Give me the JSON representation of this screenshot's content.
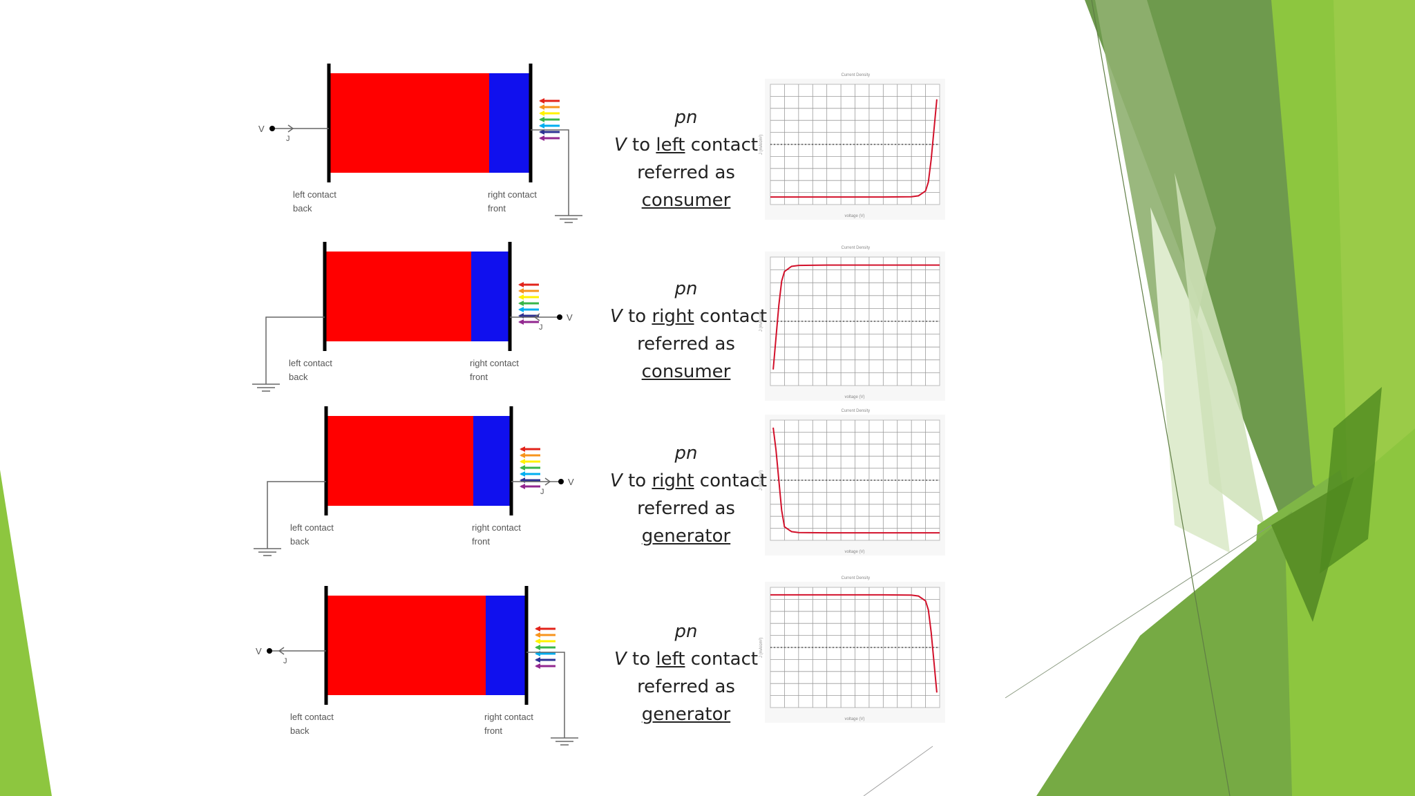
{
  "colors": {
    "p_region": "#ff0000",
    "n_region": "#1010ee",
    "contact": "#000000",
    "wire": "#666666",
    "curve": "#d2102a",
    "grid": "#9a9a9a",
    "accent_green": "#8dc63f",
    "accent_dark_green": "#5f9a2e"
  },
  "spectrum_colors": [
    "#e2231a",
    "#f7941d",
    "#fff200",
    "#39b54a",
    "#00aeef",
    "#2e3192",
    "#92278f"
  ],
  "panels": [
    {
      "id": "p1",
      "diagram": {
        "voltage_label": "V",
        "current_label": "J",
        "voltage_side": "left",
        "left_contact": "left contact",
        "left_sub": "back",
        "right_contact": "right contact",
        "right_sub": "front"
      },
      "caption": {
        "line1": "pn",
        "v_prefix": "V",
        "to_word": "to",
        "contact_side": "left",
        "contact_word": "contact",
        "line3": "referred as",
        "role": "consumer"
      },
      "chart_data": {
        "type": "line",
        "title": "Current Density",
        "xlabel": "voltage (V)",
        "ylabel": "J (mA/cm²)",
        "xlim": [
          -0.6,
          0.6
        ],
        "ylim": [
          -40,
          40
        ],
        "grid": true,
        "series": [
          {
            "x": [
              -0.6,
              -0.4,
              -0.2,
              0.0,
              0.2,
              0.4,
              0.45,
              0.5,
              0.52,
              0.54,
              0.56,
              0.58
            ],
            "y": [
              -35,
              -35,
              -35,
              -35,
              -35,
              -34.8,
              -34.2,
              -31,
              -25,
              -10,
              10,
              30
            ]
          }
        ]
      }
    },
    {
      "id": "p2",
      "diagram": {
        "voltage_label": "V",
        "current_label": "J",
        "voltage_side": "right",
        "left_contact": "left contact",
        "left_sub": "back",
        "right_contact": "right contact",
        "right_sub": "front"
      },
      "caption": {
        "line1": "pn",
        "v_prefix": "V",
        "to_word": "to",
        "contact_side": "right",
        "contact_word": "contact",
        "line3": "referred as",
        "role": "consumer"
      },
      "chart_data": {
        "type": "line",
        "title": "Current Density",
        "xlabel": "voltage (V)",
        "ylabel": "J (mA/cm²)",
        "xlim": [
          -0.6,
          0.6
        ],
        "ylim": [
          -40,
          40
        ],
        "grid": true,
        "series": [
          {
            "x": [
              -0.58,
              -0.56,
              -0.54,
              -0.52,
              -0.5,
              -0.45,
              -0.4,
              -0.2,
              0.0,
              0.2,
              0.4,
              0.6
            ],
            "y": [
              -30,
              -10,
              10,
              25,
              31,
              34.2,
              34.8,
              35,
              35,
              35,
              35,
              35
            ]
          }
        ]
      }
    },
    {
      "id": "p3",
      "diagram": {
        "voltage_label": "V",
        "current_label": "J",
        "voltage_side": "right",
        "left_contact": "left contact",
        "left_sub": "back",
        "right_contact": "right contact",
        "right_sub": "front"
      },
      "caption": {
        "line1": "pn",
        "v_prefix": "V",
        "to_word": "to",
        "contact_side": "right",
        "contact_word": "contact",
        "line3": "referred as",
        "role": "generator"
      },
      "chart_data": {
        "type": "line",
        "title": "Current Density",
        "xlabel": "voltage (V)",
        "ylabel": "J (mA/cm²)",
        "xlim": [
          -0.6,
          0.6
        ],
        "ylim": [
          -40,
          40
        ],
        "grid": true,
        "series": [
          {
            "x": [
              -0.58,
              -0.56,
              -0.54,
              -0.52,
              -0.5,
              -0.45,
              -0.4,
              -0.2,
              0.0,
              0.2,
              0.4,
              0.6
            ],
            "y": [
              35,
              20,
              0,
              -20,
              -31,
              -34.2,
              -34.8,
              -35,
              -35,
              -35,
              -35,
              -35
            ]
          }
        ]
      }
    },
    {
      "id": "p4",
      "diagram": {
        "voltage_label": "V",
        "current_label": "J",
        "voltage_side": "left",
        "left_contact": "left contact",
        "left_sub": "back",
        "right_contact": "right contact",
        "right_sub": "front"
      },
      "caption": {
        "line1": "pn",
        "v_prefix": "V",
        "to_word": "to",
        "contact_side": "left",
        "contact_word": "contact",
        "line3": "referred as",
        "role": "generator"
      },
      "chart_data": {
        "type": "line",
        "title": "Current Density",
        "xlabel": "voltage (V)",
        "ylabel": "J (mA/cm²)",
        "xlim": [
          -0.6,
          0.6
        ],
        "ylim": [
          -40,
          40
        ],
        "grid": true,
        "series": [
          {
            "x": [
              -0.6,
              -0.4,
              -0.2,
              0.0,
              0.2,
              0.4,
              0.45,
              0.5,
              0.52,
              0.54,
              0.56,
              0.58
            ],
            "y": [
              35,
              35,
              35,
              35,
              35,
              34.8,
              34.2,
              31,
              25,
              10,
              -10,
              -30
            ]
          }
        ]
      }
    }
  ]
}
